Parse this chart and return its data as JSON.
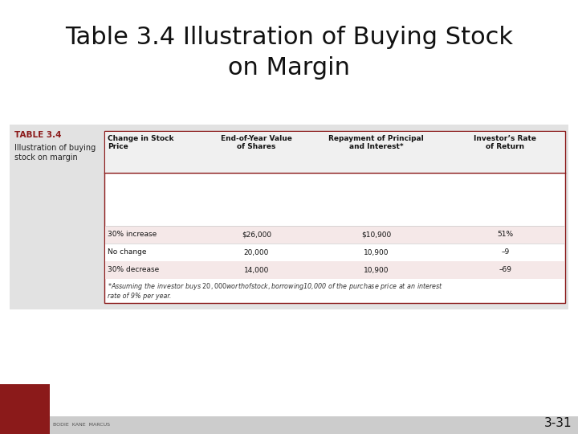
{
  "title": "Table 3.4 Illustration of Buying Stock\non Margin",
  "title_fontsize": 22,
  "slide_bg": "#ffffff",
  "table_label": "TABLE 3.4",
  "table_sublabel": "Illustration of buying\nstock on margin",
  "table_label_color": "#8b1a1a",
  "col_headers": [
    "Change in Stock\nPrice",
    "End-of-Year Value\nof Shares",
    "Repayment of Principal\nand Interest*",
    "Investor’s Rate\nof Return"
  ],
  "rows": [
    [
      "30% increase",
      "$26,000",
      "$10,900",
      "51%"
    ],
    [
      "No change",
      "20,000",
      "10,900",
      "–9"
    ],
    [
      "30% decrease",
      "14,000",
      "10,900",
      "–69"
    ]
  ],
  "row_colors": [
    "#f5e8e8",
    "#ffffff",
    "#f5e8e8"
  ],
  "footnote": "*Assuming the investor buys $20,000 worth of stock, borrowing $10,000 of the purchase price at an interest\nrate of 9% per year.",
  "page_num": "3-31",
  "table_area_bg": "#e2e2e2",
  "inner_table_border": "#8b1a1a",
  "bottom_bar_color": "#cccccc",
  "bottom_bar_left_color": "#8b1a1a",
  "header_bg": "#f0f0f0"
}
